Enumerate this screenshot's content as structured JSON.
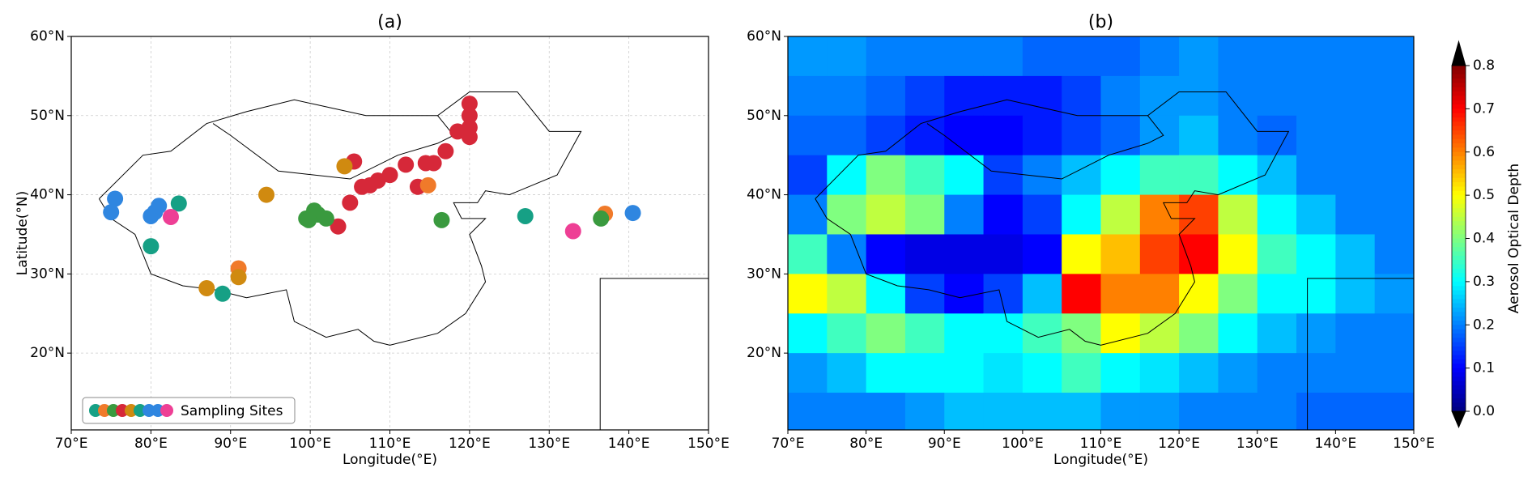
{
  "chart_data": [
    {
      "type": "scatter",
      "title": "(a)",
      "x_label": "Longitude(°E)",
      "y_label": "Latitude(°N)",
      "xlim": [
        70,
        150
      ],
      "ylim": [
        10.3,
        60
      ],
      "xticks": [
        {
          "value": 70,
          "label": "70°E"
        },
        {
          "value": 80,
          "label": "80°E"
        },
        {
          "value": 90,
          "label": "90°E"
        },
        {
          "value": 100,
          "label": "100°E"
        },
        {
          "value": 110,
          "label": "110°E"
        },
        {
          "value": 120,
          "label": "120°E"
        },
        {
          "value": 130,
          "label": "130°E"
        },
        {
          "value": 140,
          "label": "140°E"
        },
        {
          "value": 150,
          "label": "150°E"
        }
      ],
      "yticks": [
        {
          "value": 20,
          "label": "20°N"
        },
        {
          "value": 30,
          "label": "30°N"
        },
        {
          "value": 40,
          "label": "40°N"
        },
        {
          "value": 50,
          "label": "50°N"
        },
        {
          "value": 60,
          "label": "60°N"
        }
      ],
      "grid": true,
      "legend": "lower left",
      "series": [
        {
          "name": "Sampling Sites",
          "legend_colors": [
            "#16a085",
            "#f07a2a",
            "#3a9a3f",
            "#d62839",
            "#d08a10",
            "#16a085",
            "#2f86e0",
            "#2f86e0",
            "#ee3f95"
          ],
          "x": [
            120,
            120,
            120,
            118.5,
            120,
            117,
            115.5,
            114.5,
            105.5,
            112,
            110,
            108.5,
            107.5,
            106.5,
            113.5,
            105,
            103.5,
            114.8,
            91,
            137,
            94.5,
            104.3,
            91,
            87,
            99.5,
            100.5,
            101,
            102,
            99.8,
            116.5,
            136.5,
            80,
            89,
            127,
            83.5,
            75.5,
            75,
            80,
            80.5,
            81,
            140.5,
            82.5,
            133
          ],
          "y": [
            51.5,
            50,
            48.5,
            48,
            47.3,
            45.5,
            44,
            44,
            44.2,
            43.8,
            42.5,
            41.8,
            41.2,
            41,
            41,
            39,
            36,
            41.2,
            30.7,
            37.6,
            40,
            43.6,
            29.6,
            28.2,
            37,
            38,
            37.5,
            37,
            36.8,
            36.8,
            37,
            33.5,
            27.5,
            37.3,
            38.9,
            39.5,
            37.8,
            37.3,
            37.8,
            38.6,
            37.7,
            37.2,
            35.4
          ],
          "colors": [
            "#d62839",
            "#d62839",
            "#d62839",
            "#d62839",
            "#d62839",
            "#d62839",
            "#d62839",
            "#d62839",
            "#d62839",
            "#d62839",
            "#d62839",
            "#d62839",
            "#d62839",
            "#d62839",
            "#d62839",
            "#d62839",
            "#d62839",
            "#f07a2a",
            "#f07a2a",
            "#f07a2a",
            "#d08a10",
            "#d08a10",
            "#d08a10",
            "#d08a10",
            "#3a9a3f",
            "#3a9a3f",
            "#3a9a3f",
            "#3a9a3f",
            "#3a9a3f",
            "#3a9a3f",
            "#3a9a3f",
            "#16a085",
            "#16a085",
            "#16a085",
            "#16a085",
            "#2f86e0",
            "#2f86e0",
            "#2f86e0",
            "#2f86e0",
            "#2f86e0",
            "#2f86e0",
            "#ee3f95",
            "#ee3f95"
          ]
        }
      ]
    },
    {
      "type": "heatmap",
      "title": "(b)",
      "x_label": "Longitude(°E)",
      "colorbar_label": "Aerosol Optical Depth",
      "xlim": [
        70,
        150
      ],
      "ylim": [
        10.3,
        60
      ],
      "zlim": [
        0,
        0.8
      ],
      "colormap": "jet",
      "xticks": [
        {
          "value": 70,
          "label": "70°E"
        },
        {
          "value": 80,
          "label": "80°E"
        },
        {
          "value": 90,
          "label": "90°E"
        },
        {
          "value": 100,
          "label": "100°E"
        },
        {
          "value": 110,
          "label": "110°E"
        },
        {
          "value": 120,
          "label": "120°E"
        },
        {
          "value": 130,
          "label": "130°E"
        },
        {
          "value": 140,
          "label": "140°E"
        },
        {
          "value": 150,
          "label": "150°E"
        }
      ],
      "yticks": [
        {
          "value": 20,
          "label": "20°N"
        },
        {
          "value": 30,
          "label": "30°N"
        },
        {
          "value": 40,
          "label": "40°N"
        },
        {
          "value": 50,
          "label": "50°N"
        },
        {
          "value": 60,
          "label": "60°N"
        }
      ],
      "zticks": [
        {
          "value": 0,
          "label": "0.0"
        },
        0.1,
        0.2,
        0.3,
        0.4,
        0.5,
        0.6,
        0.7,
        0.8
      ],
      "x": [
        72.5,
        77.5,
        82.5,
        87.5,
        92.5,
        97.5,
        102.5,
        107.5,
        112.5,
        117.5,
        122.5,
        127.5,
        132.5,
        137.5,
        142.5,
        147.5
      ],
      "y": [
        57.5,
        52.5,
        47.5,
        42.5,
        37.5,
        32.5,
        27.5,
        22.5,
        17.5,
        12.5
      ],
      "z": [
        [
          0.22,
          0.22,
          0.2,
          0.2,
          0.2,
          0.2,
          0.18,
          0.18,
          0.18,
          0.2,
          0.22,
          0.2,
          0.2,
          0.2,
          0.2,
          0.2
        ],
        [
          0.2,
          0.2,
          0.18,
          0.15,
          0.12,
          0.12,
          0.12,
          0.15,
          0.2,
          0.22,
          0.22,
          0.2,
          0.2,
          0.2,
          0.2,
          0.2
        ],
        [
          0.18,
          0.18,
          0.15,
          0.12,
          0.1,
          0.1,
          0.12,
          0.15,
          0.18,
          0.22,
          0.25,
          0.2,
          0.18,
          0.2,
          0.2,
          0.2
        ],
        [
          0.15,
          0.3,
          0.4,
          0.35,
          0.3,
          0.15,
          0.2,
          0.25,
          0.3,
          0.35,
          0.35,
          0.3,
          0.25,
          0.2,
          0.2,
          0.2
        ],
        [
          0.2,
          0.4,
          0.45,
          0.4,
          0.2,
          0.1,
          0.15,
          0.3,
          0.45,
          0.6,
          0.65,
          0.45,
          0.3,
          0.25,
          0.2,
          0.2
        ],
        [
          0.35,
          0.2,
          0.1,
          0.08,
          0.08,
          0.08,
          0.1,
          0.5,
          0.55,
          0.65,
          0.7,
          0.5,
          0.35,
          0.3,
          0.25,
          0.2
        ],
        [
          0.5,
          0.45,
          0.3,
          0.15,
          0.1,
          0.15,
          0.25,
          0.7,
          0.6,
          0.6,
          0.5,
          0.4,
          0.3,
          0.3,
          0.25,
          0.22
        ],
        [
          0.3,
          0.35,
          0.4,
          0.35,
          0.3,
          0.3,
          0.35,
          0.4,
          0.5,
          0.45,
          0.4,
          0.3,
          0.25,
          0.22,
          0.2,
          0.2
        ],
        [
          0.22,
          0.25,
          0.3,
          0.3,
          0.3,
          0.28,
          0.3,
          0.35,
          0.3,
          0.28,
          0.25,
          0.22,
          0.2,
          0.2,
          0.2,
          0.2
        ],
        [
          0.2,
          0.2,
          0.2,
          0.22,
          0.25,
          0.25,
          0.25,
          0.25,
          0.22,
          0.22,
          0.2,
          0.2,
          0.2,
          0.18,
          0.18,
          0.18
        ]
      ]
    }
  ]
}
